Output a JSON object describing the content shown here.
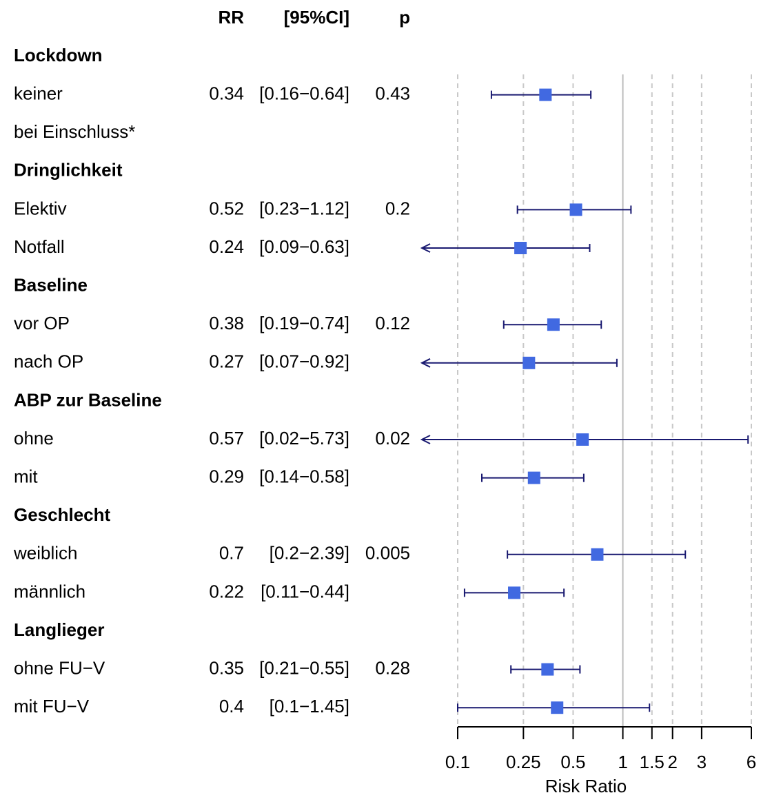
{
  "chart_data": {
    "type": "forest",
    "column_headers": {
      "rr": "RR",
      "ci": "[95%CI]",
      "p": "p"
    },
    "rows": [
      {
        "label": "Lockdown",
        "group": true
      },
      {
        "label": "keiner",
        "rr": 0.34,
        "lower": 0.16,
        "upper": 0.64,
        "ci": "[0.16−0.64]",
        "p": 0.43
      },
      {
        "label": "bei Einschluss*"
      },
      {
        "label": "Dringlichkeit",
        "group": true
      },
      {
        "label": "Elektiv",
        "rr": 0.52,
        "lower": 0.23,
        "upper": 1.12,
        "ci": "[0.23−1.12]",
        "p": 0.2
      },
      {
        "label": "Notfall",
        "rr": 0.24,
        "lower": 0.09,
        "upper": 0.63,
        "ci": "[0.09−0.63]"
      },
      {
        "label": "Baseline",
        "group": true
      },
      {
        "label": "vor OP",
        "rr": 0.38,
        "lower": 0.19,
        "upper": 0.74,
        "ci": "[0.19−0.74]",
        "p": 0.12
      },
      {
        "label": "nach OP",
        "rr": 0.27,
        "lower": 0.07,
        "upper": 0.92,
        "ci": "[0.07−0.92]"
      },
      {
        "label": "ABP zur Baseline",
        "group": true
      },
      {
        "label": "ohne",
        "rr": 0.57,
        "lower": 0.02,
        "upper": 5.73,
        "ci": "[0.02−5.73]",
        "p": 0.02
      },
      {
        "label": "mit",
        "rr": 0.29,
        "lower": 0.14,
        "upper": 0.58,
        "ci": "[0.14−0.58]"
      },
      {
        "label": "Geschlecht",
        "group": true
      },
      {
        "label": "weiblich",
        "rr": 0.7,
        "lower": 0.2,
        "upper": 2.39,
        "ci": "[0.2−2.39]",
        "p": 0.005
      },
      {
        "label": "männlich",
        "rr": 0.22,
        "lower": 0.11,
        "upper": 0.44,
        "ci": "[0.11−0.44]"
      },
      {
        "label": "Langlieger",
        "group": true
      },
      {
        "label": "ohne FU−V",
        "rr": 0.35,
        "lower": 0.21,
        "upper": 0.55,
        "ci": "[0.21−0.55]",
        "p": 0.28
      },
      {
        "label": "mit FU−V",
        "rr": 0.4,
        "lower": 0.1,
        "upper": 1.45,
        "ci": "[0.1−1.45]"
      }
    ],
    "xlabel": "Risk Ratio",
    "xlim": [
      0.1,
      6
    ],
    "xticks": [
      0.1,
      0.25,
      0.5,
      1,
      1.5,
      2,
      3,
      6
    ],
    "log_x": true,
    "grid": true,
    "reference": 1,
    "marker_color": "#4169e1",
    "line_color": "#191970"
  }
}
